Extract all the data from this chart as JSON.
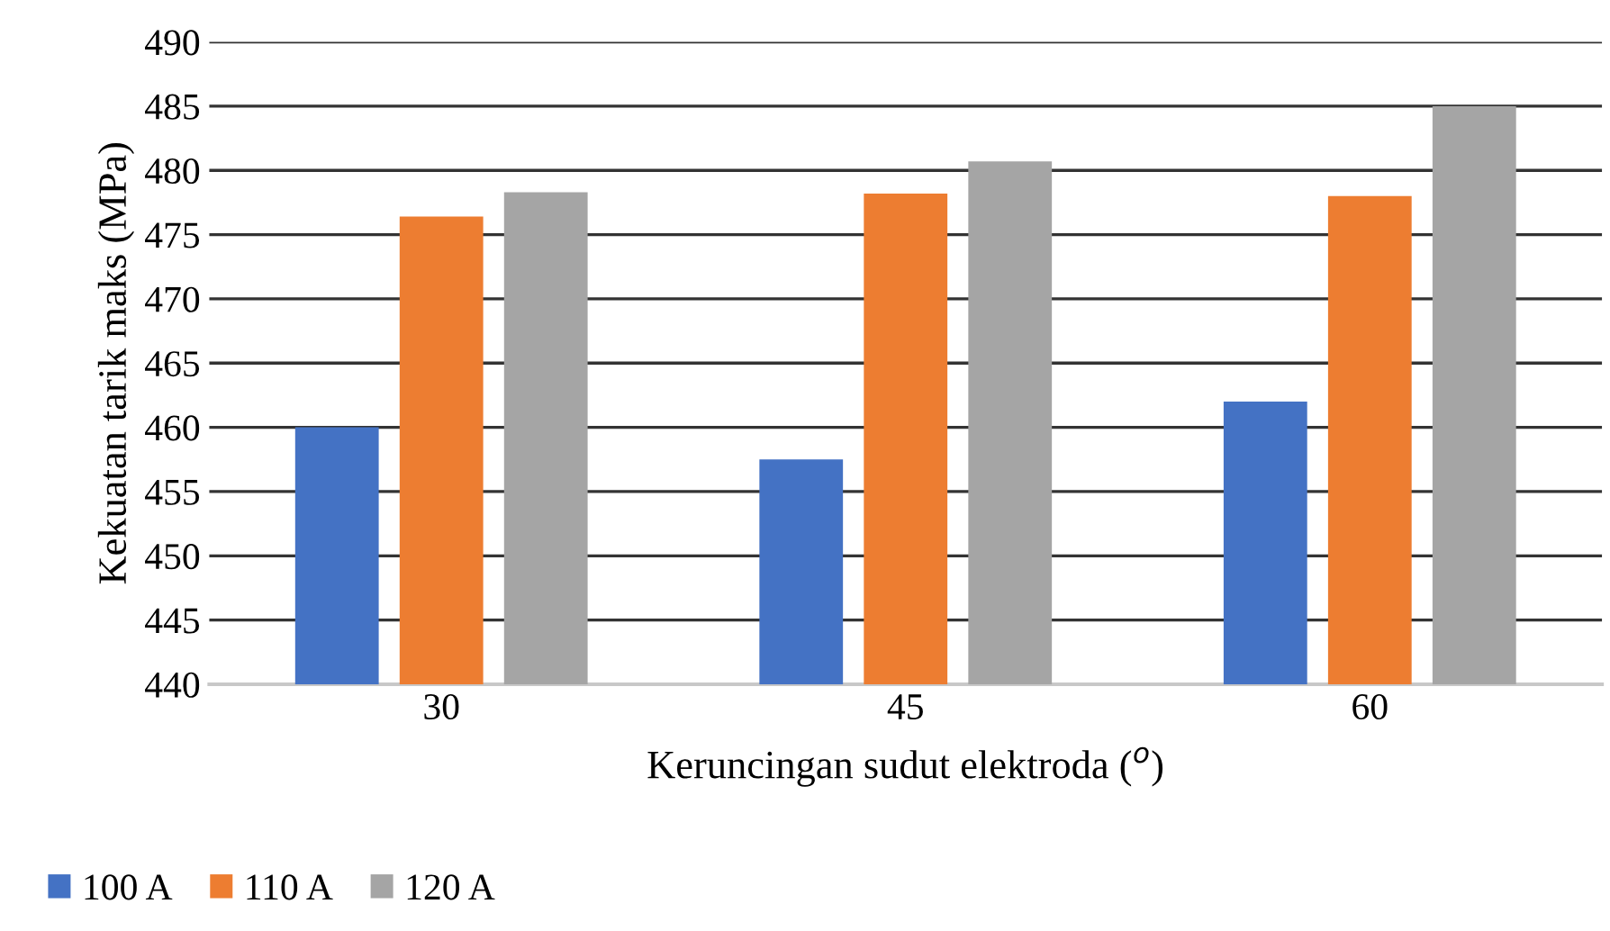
{
  "chart_data": {
    "type": "bar",
    "xlabel": "Keruncingan sudut elektroda ($^{o}$)",
    "ylabel": "Kekuatan tarik maks (MPa)",
    "categories": [
      "30",
      "45",
      "60"
    ],
    "series": [
      {
        "name": "100 A",
        "color": "#4472c4",
        "values": [
          460,
          457.5,
          462
        ]
      },
      {
        "name": "110 A",
        "color": "#ed7d31",
        "values": [
          476.4,
          478.2,
          478
        ]
      },
      {
        "name": "120 A",
        "color": "#a5a5a5",
        "values": [
          478.3,
          480.7,
          485
        ]
      }
    ],
    "ylim": [
      440,
      490
    ],
    "yticks": [
      440,
      445,
      450,
      455,
      460,
      465,
      470,
      475,
      480,
      485,
      490
    ],
    "grid": "y",
    "legend": "bottom left"
  }
}
